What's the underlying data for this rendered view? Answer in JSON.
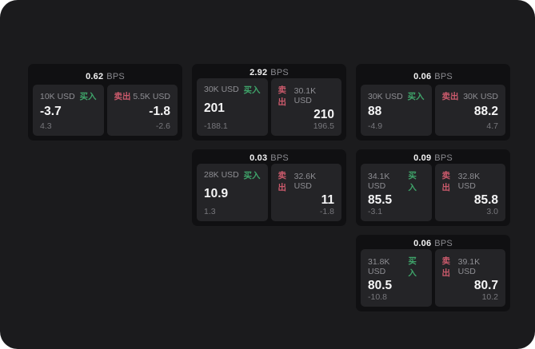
{
  "labels": {
    "bps_suffix": "BPS",
    "buy": "买入",
    "sell": "卖出"
  },
  "colors": {
    "page_bg": "#ffffff",
    "app_bg": "#1b1b1d",
    "card_bg": "#101012",
    "panel_bg": "#242427",
    "text_primary": "#f5f5f6",
    "text_secondary": "#8e8e93",
    "text_dim": "#77777c",
    "buy_green": "#3fa46a",
    "sell_red": "#cb5a6c"
  },
  "cards": [
    {
      "row": 1,
      "col": 1,
      "bps": "0.62",
      "buy": {
        "size": "10K USD",
        "value": "-3.7",
        "sub": "4.3"
      },
      "sell": {
        "size": "5.5K USD",
        "value": "-1.8",
        "sub": "-2.6"
      }
    },
    {
      "row": 1,
      "col": 2,
      "bps": "2.92",
      "buy": {
        "size": "30K USD",
        "value": "201",
        "sub": "-188.1"
      },
      "sell": {
        "size": "30.1K USD",
        "value": "210",
        "sub": "196.5"
      }
    },
    {
      "row": 1,
      "col": 3,
      "bps": "0.06",
      "buy": {
        "size": "30K USD",
        "value": "88",
        "sub": "-4.9"
      },
      "sell": {
        "size": "30K USD",
        "value": "88.2",
        "sub": "4.7"
      }
    },
    {
      "row": 2,
      "col": 2,
      "bps": "0.03",
      "buy": {
        "size": "28K USD",
        "value": "10.9",
        "sub": "1.3"
      },
      "sell": {
        "size": "32.6K USD",
        "value": "11",
        "sub": "-1.8"
      }
    },
    {
      "row": 2,
      "col": 3,
      "bps": "0.09",
      "buy": {
        "size": "34.1K USD",
        "value": "85.5",
        "sub": "-3.1"
      },
      "sell": {
        "size": "32.8K USD",
        "value": "85.8",
        "sub": "3.0"
      }
    },
    {
      "row": 3,
      "col": 3,
      "bps": "0.06",
      "buy": {
        "size": "31.8K USD",
        "value": "80.5",
        "sub": "-10.8"
      },
      "sell": {
        "size": "39.1K USD",
        "value": "80.7",
        "sub": "10.2"
      }
    }
  ]
}
